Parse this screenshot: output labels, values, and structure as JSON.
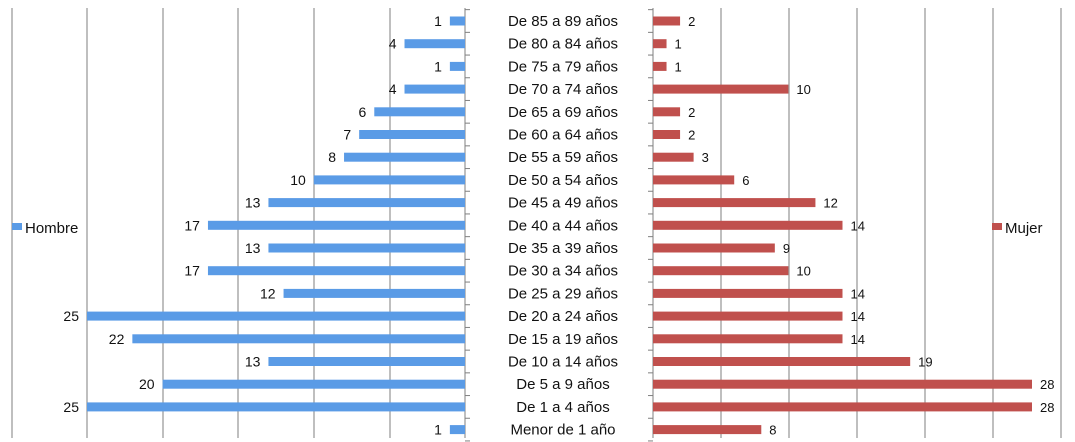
{
  "chart_data": {
    "type": "bar",
    "orientation": "horizontal",
    "layout": "population-pyramid",
    "categories": [
      "De 85 a 89 años",
      "De 80 a 84 años",
      "De 75 a 79 años",
      "De 70 a 74 años",
      "De 65 a 69 años",
      "De 60 a 64 años",
      "De 55 a 59 años",
      "De 50 a 54 años",
      "De 45 a 49 años",
      "De 40 a 44 años",
      "De 35 a 39 años",
      "De 30 a 34 años",
      "De 25 a 29 años",
      "De 20 a 24 años",
      "De 15 a 19 años",
      "De 10 a 14 años",
      "De 5 a 9 años",
      "De 1 a 4 años",
      "Menor de 1 año"
    ],
    "series": [
      {
        "name": "Hombre",
        "color": "#5a9be6",
        "values": [
          1,
          4,
          1,
          4,
          6,
          7,
          8,
          10,
          13,
          17,
          13,
          17,
          12,
          25,
          22,
          13,
          20,
          25,
          1
        ]
      },
      {
        "name": "Mujer",
        "color": "#c0504d",
        "values": [
          2,
          1,
          1,
          10,
          2,
          2,
          3,
          6,
          12,
          14,
          9,
          10,
          14,
          14,
          14,
          19,
          28,
          28,
          8
        ]
      }
    ],
    "left_xlim": [
      0,
      25
    ],
    "right_xlim": [
      0,
      28
    ],
    "grid": "vertical",
    "legend": {
      "Hombre": "left",
      "Mujer": "right"
    },
    "title": "",
    "xlabel": "",
    "ylabel": ""
  }
}
